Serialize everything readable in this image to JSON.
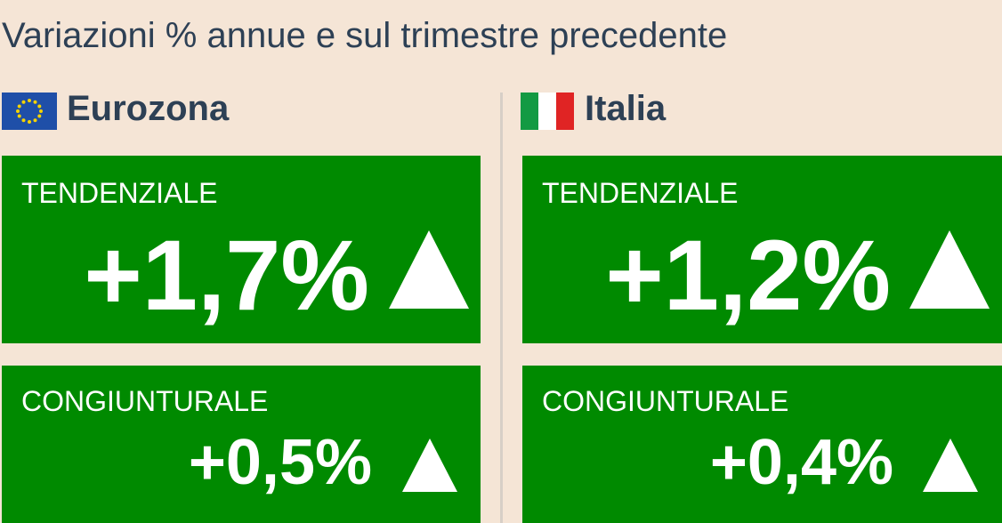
{
  "header": {
    "title": "Variazioni % annue e sul trimestre precedente"
  },
  "panels": [
    {
      "name": "Eurozona",
      "boxes": [
        {
          "label": "TENDENZIALE",
          "value": "+1,7%"
        },
        {
          "label": "CONGIUNTURALE",
          "value": "+0,5%"
        }
      ]
    },
    {
      "name": "Italia",
      "boxes": [
        {
          "label": "TENDENZIALE",
          "value": "+1,2%"
        },
        {
          "label": "CONGIUNTURALE",
          "value": "+0,4%"
        }
      ]
    }
  ]
}
